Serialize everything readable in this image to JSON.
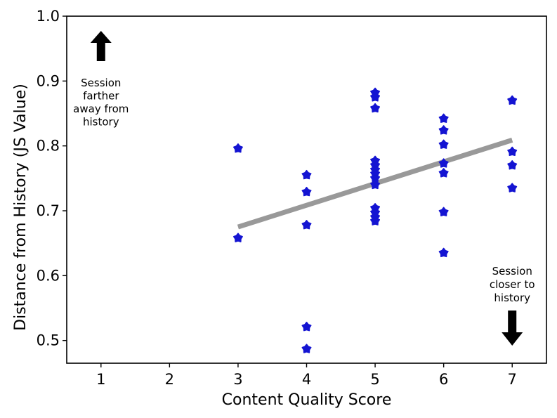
{
  "chart_data": {
    "type": "scatter",
    "title": "",
    "xlabel": "Content Quality Score",
    "ylabel": "Distance from History (JS Value)",
    "xlim": [
      0.5,
      7.5
    ],
    "ylim": [
      0.465,
      1.0
    ],
    "xticks": [
      "1",
      "2",
      "3",
      "4",
      "5",
      "6",
      "7"
    ],
    "yticks": [
      "0.5",
      "0.6",
      "0.7",
      "0.8",
      "0.9",
      "1.0"
    ],
    "grid": false,
    "marker": "pentagon-star",
    "point_color": "#1414d2",
    "trend_color": "#999999",
    "points": [
      {
        "x": 3,
        "y": 0.796
      },
      {
        "x": 3,
        "y": 0.658
      },
      {
        "x": 4,
        "y": 0.755
      },
      {
        "x": 4,
        "y": 0.729
      },
      {
        "x": 4,
        "y": 0.678
      },
      {
        "x": 4,
        "y": 0.521
      },
      {
        "x": 4,
        "y": 0.487
      },
      {
        "x": 5,
        "y": 0.882
      },
      {
        "x": 5,
        "y": 0.875
      },
      {
        "x": 5,
        "y": 0.858
      },
      {
        "x": 5,
        "y": 0.777
      },
      {
        "x": 5,
        "y": 0.77
      },
      {
        "x": 5,
        "y": 0.763
      },
      {
        "x": 5,
        "y": 0.757
      },
      {
        "x": 5,
        "y": 0.75
      },
      {
        "x": 5,
        "y": 0.74
      },
      {
        "x": 5,
        "y": 0.704
      },
      {
        "x": 5,
        "y": 0.697
      },
      {
        "x": 5,
        "y": 0.69
      },
      {
        "x": 5,
        "y": 0.684
      },
      {
        "x": 6,
        "y": 0.842
      },
      {
        "x": 6,
        "y": 0.824
      },
      {
        "x": 6,
        "y": 0.802
      },
      {
        "x": 6,
        "y": 0.773
      },
      {
        "x": 6,
        "y": 0.758
      },
      {
        "x": 6,
        "y": 0.698
      },
      {
        "x": 6,
        "y": 0.635
      },
      {
        "x": 7,
        "y": 0.87
      },
      {
        "x": 7,
        "y": 0.791
      },
      {
        "x": 7,
        "y": 0.77
      },
      {
        "x": 7,
        "y": 0.735
      }
    ],
    "trendline": {
      "x": [
        3,
        7
      ],
      "y": [
        0.675,
        0.809
      ]
    },
    "annotations": {
      "top": {
        "lines": [
          "Session",
          "farther",
          "away from",
          "history"
        ],
        "arrow": "up",
        "x": 1
      },
      "bottom": {
        "lines": [
          "Session",
          "closer to",
          "history"
        ],
        "arrow": "down",
        "x": 7
      }
    }
  }
}
